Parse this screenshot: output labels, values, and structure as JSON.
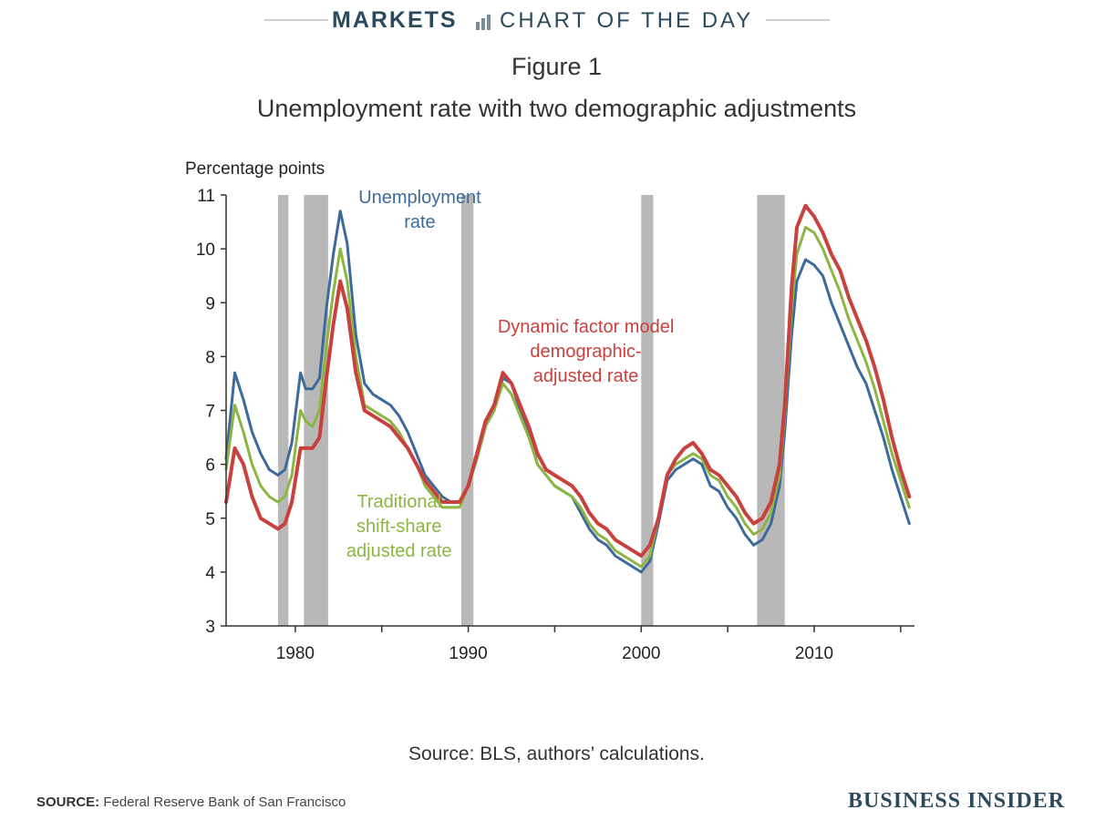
{
  "banner": {
    "section": "MARKETS",
    "subtitle": "CHART OF THE DAY"
  },
  "figure_title": "Figure 1",
  "subtitle": "Unemployment rate with two demographic adjustments",
  "y_axis_label": "Percentage points",
  "inner_source": "Source: BLS, authors’ calculations.",
  "footer": {
    "source_label": "SOURCE:",
    "source_text": " Federal Reserve Bank of San Francisco",
    "brand": "BUSINESS INSIDER"
  },
  "colors": {
    "unemployment": "#3d6a9b",
    "dfm": "#c8413f",
    "shift_share": "#8db542",
    "recession": "#b8b8b8",
    "brand": "#2c4a5e"
  },
  "chart_data": {
    "type": "line",
    "title": "Unemployment rate with two demographic adjustments",
    "ylabel": "Percentage points",
    "xlabel": "",
    "xlim": [
      1976,
      2015.8
    ],
    "ylim": [
      3,
      11
    ],
    "x_ticks": [
      1980,
      1990,
      2000,
      2010
    ],
    "y_ticks": [
      3,
      4,
      5,
      6,
      7,
      8,
      9,
      10,
      11
    ],
    "grid": false,
    "recessions": [
      [
        1979.0,
        1979.6
      ],
      [
        1980.5,
        1981.9
      ],
      [
        1989.6,
        1990.3
      ],
      [
        2000.0,
        2000.7
      ],
      [
        2006.7,
        2008.3
      ]
    ],
    "annotations": [
      {
        "text": [
          "Unemployment",
          "rate"
        ],
        "series": "Unemployment rate",
        "x": 1987.2,
        "y": 10.85
      },
      {
        "text": [
          "Dynamic factor model",
          "demographic-",
          "adjusted rate"
        ],
        "series": "Dynamic factor model demographic-adjusted rate",
        "x": 1996.8,
        "y": 8.45
      },
      {
        "text": [
          "Traditional",
          "shift-share",
          "adjusted rate"
        ],
        "series": "Traditional shift-share adjusted rate",
        "x": 1986.0,
        "y": 5.2
      }
    ],
    "series": [
      {
        "name": "Unemployment rate",
        "color": "#3d6a9b",
        "x": [
          1976.0,
          1976.5,
          1977.0,
          1977.5,
          1978.0,
          1978.5,
          1979.0,
          1979.4,
          1979.8,
          1980.3,
          1980.6,
          1981.0,
          1981.4,
          1981.8,
          1982.2,
          1982.6,
          1983.0,
          1983.5,
          1984.0,
          1984.5,
          1985.0,
          1985.5,
          1986.0,
          1986.5,
          1987.0,
          1987.5,
          1988.0,
          1988.5,
          1989.0,
          1989.5,
          1990.0,
          1990.5,
          1991.0,
          1991.5,
          1992.0,
          1992.5,
          1993.0,
          1993.5,
          1994.0,
          1994.5,
          1995.0,
          1995.5,
          1996.0,
          1996.5,
          1997.0,
          1997.5,
          1998.0,
          1998.5,
          1999.0,
          1999.5,
          2000.0,
          2000.5,
          2001.0,
          2001.5,
          2002.0,
          2002.5,
          2003.0,
          2003.5,
          2004.0,
          2004.5,
          2005.0,
          2005.5,
          2006.0,
          2006.5,
          2007.0,
          2007.5,
          2008.0,
          2008.3,
          2008.7,
          2009.0,
          2009.5,
          2010.0,
          2010.5,
          2011.0,
          2011.5,
          2012.0,
          2012.5,
          2013.0,
          2013.5,
          2014.0,
          2014.5,
          2015.0,
          2015.5
        ],
        "y": [
          6.1,
          7.7,
          7.2,
          6.6,
          6.2,
          5.9,
          5.8,
          5.9,
          6.4,
          7.7,
          7.4,
          7.4,
          7.6,
          8.9,
          9.9,
          10.7,
          10.1,
          8.4,
          7.5,
          7.3,
          7.2,
          7.1,
          6.9,
          6.6,
          6.2,
          5.8,
          5.6,
          5.4,
          5.3,
          5.3,
          5.6,
          6.1,
          6.7,
          7.0,
          7.6,
          7.5,
          7.0,
          6.6,
          6.0,
          5.8,
          5.6,
          5.5,
          5.4,
          5.1,
          4.8,
          4.6,
          4.5,
          4.3,
          4.2,
          4.1,
          4.0,
          4.2,
          4.9,
          5.7,
          5.9,
          6.0,
          6.1,
          6.0,
          5.6,
          5.5,
          5.2,
          5.0,
          4.7,
          4.5,
          4.6,
          4.9,
          5.6,
          6.6,
          8.4,
          9.4,
          9.8,
          9.7,
          9.5,
          9.0,
          8.6,
          8.2,
          7.8,
          7.5,
          7.0,
          6.5,
          5.9,
          5.4,
          4.9
        ]
      },
      {
        "name": "Traditional shift-share adjusted rate",
        "color": "#8db542",
        "x": [
          1976.0,
          1976.5,
          1977.0,
          1977.5,
          1978.0,
          1978.5,
          1979.0,
          1979.4,
          1979.8,
          1980.3,
          1980.6,
          1981.0,
          1981.4,
          1981.8,
          1982.2,
          1982.6,
          1983.0,
          1983.5,
          1984.0,
          1984.5,
          1985.0,
          1985.5,
          1986.0,
          1986.5,
          1987.0,
          1987.5,
          1988.0,
          1988.5,
          1989.0,
          1989.5,
          1990.0,
          1990.5,
          1991.0,
          1991.5,
          1992.0,
          1992.5,
          1993.0,
          1993.5,
          1994.0,
          1994.5,
          1995.0,
          1995.5,
          1996.0,
          1996.5,
          1997.0,
          1997.5,
          1998.0,
          1998.5,
          1999.0,
          1999.5,
          2000.0,
          2000.5,
          2001.0,
          2001.5,
          2002.0,
          2002.5,
          2003.0,
          2003.5,
          2004.0,
          2004.5,
          2005.0,
          2005.5,
          2006.0,
          2006.5,
          2007.0,
          2007.5,
          2008.0,
          2008.3,
          2008.7,
          2009.0,
          2009.5,
          2010.0,
          2010.5,
          2011.0,
          2011.5,
          2012.0,
          2012.5,
          2013.0,
          2013.5,
          2014.0,
          2014.5,
          2015.0,
          2015.5
        ],
        "y": [
          5.9,
          7.1,
          6.6,
          6.0,
          5.6,
          5.4,
          5.3,
          5.4,
          5.8,
          7.0,
          6.8,
          6.7,
          7.0,
          8.2,
          9.2,
          10.0,
          9.4,
          8.0,
          7.1,
          7.0,
          6.9,
          6.8,
          6.6,
          6.3,
          6.0,
          5.6,
          5.4,
          5.2,
          5.2,
          5.2,
          5.6,
          6.1,
          6.7,
          7.0,
          7.5,
          7.3,
          6.9,
          6.5,
          6.0,
          5.8,
          5.6,
          5.5,
          5.4,
          5.2,
          4.9,
          4.7,
          4.6,
          4.4,
          4.3,
          4.2,
          4.1,
          4.3,
          5.0,
          5.8,
          6.0,
          6.1,
          6.2,
          6.1,
          5.8,
          5.7,
          5.4,
          5.2,
          4.9,
          4.7,
          4.8,
          5.1,
          5.8,
          6.9,
          8.9,
          9.9,
          10.4,
          10.3,
          10.0,
          9.6,
          9.2,
          8.7,
          8.3,
          7.9,
          7.4,
          6.8,
          6.2,
          5.7,
          5.2
        ]
      },
      {
        "name": "Dynamic factor model demographic-adjusted rate",
        "color": "#c8413f",
        "x": [
          1976.0,
          1976.5,
          1977.0,
          1977.5,
          1978.0,
          1978.5,
          1979.0,
          1979.4,
          1979.8,
          1980.3,
          1980.6,
          1981.0,
          1981.4,
          1981.8,
          1982.2,
          1982.6,
          1983.0,
          1983.5,
          1984.0,
          1984.5,
          1985.0,
          1985.5,
          1986.0,
          1986.5,
          1987.0,
          1987.5,
          1988.0,
          1988.5,
          1989.0,
          1989.5,
          1990.0,
          1990.5,
          1991.0,
          1991.5,
          1992.0,
          1992.5,
          1993.0,
          1993.5,
          1994.0,
          1994.5,
          1995.0,
          1995.5,
          1996.0,
          1996.5,
          1997.0,
          1997.5,
          1998.0,
          1998.5,
          1999.0,
          1999.5,
          2000.0,
          2000.5,
          2001.0,
          2001.5,
          2002.0,
          2002.5,
          2003.0,
          2003.5,
          2004.0,
          2004.5,
          2005.0,
          2005.5,
          2006.0,
          2006.5,
          2007.0,
          2007.5,
          2008.0,
          2008.3,
          2008.7,
          2009.0,
          2009.5,
          2010.0,
          2010.5,
          2011.0,
          2011.5,
          2012.0,
          2012.5,
          2013.0,
          2013.5,
          2014.0,
          2014.5,
          2015.0,
          2015.5
        ],
        "y": [
          5.3,
          6.3,
          6.0,
          5.4,
          5.0,
          4.9,
          4.8,
          4.9,
          5.3,
          6.3,
          6.3,
          6.3,
          6.5,
          7.6,
          8.6,
          9.4,
          8.9,
          7.7,
          7.0,
          6.9,
          6.8,
          6.7,
          6.5,
          6.3,
          6.0,
          5.7,
          5.5,
          5.3,
          5.3,
          5.3,
          5.6,
          6.2,
          6.8,
          7.1,
          7.7,
          7.5,
          7.1,
          6.7,
          6.2,
          5.9,
          5.8,
          5.7,
          5.6,
          5.4,
          5.1,
          4.9,
          4.8,
          4.6,
          4.5,
          4.4,
          4.3,
          4.5,
          5.0,
          5.8,
          6.1,
          6.3,
          6.4,
          6.2,
          5.9,
          5.8,
          5.6,
          5.4,
          5.1,
          4.9,
          5.0,
          5.3,
          6.0,
          7.1,
          9.3,
          10.4,
          10.8,
          10.6,
          10.3,
          9.9,
          9.6,
          9.1,
          8.7,
          8.3,
          7.8,
          7.2,
          6.5,
          5.9,
          5.4
        ]
      }
    ]
  }
}
